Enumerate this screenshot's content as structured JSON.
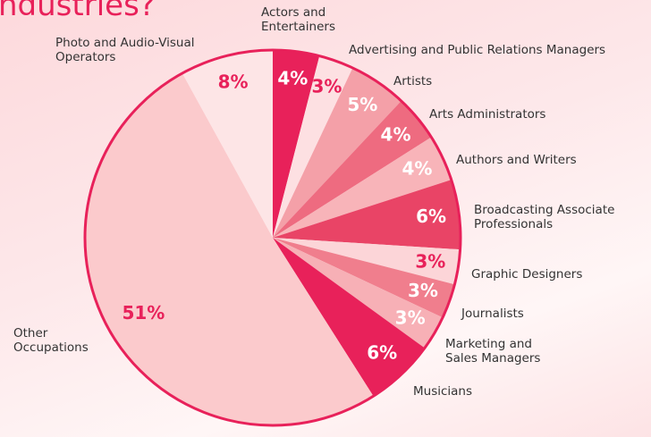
{
  "chart_data": {
    "type": "pie",
    "title": "ndustries?",
    "categories": [
      "Actors and Entertainers",
      "Advertising and Public Relations Managers",
      "Artists",
      "Arts Administrators",
      "Authors and Writers",
      "Broadcasting Associate Professionals",
      "Graphic Designers",
      "Journalists",
      "Marketing and Sales Managers",
      "Musicians",
      "Other Occupations",
      "Photo and Audio-Visual Operators"
    ],
    "values": [
      4,
      3,
      5,
      4,
      4,
      6,
      3,
      3,
      3,
      6,
      51,
      8
    ],
    "value_labels": [
      "4%",
      "3%",
      "5%",
      "4%",
      "4%",
      "6%",
      "3%",
      "3%",
      "3%",
      "6%",
      "51%",
      "8%"
    ],
    "colors": [
      "#e8215a",
      "#fde0e2",
      "#f4a0a8",
      "#ee6b80",
      "#f8b4b9",
      "#e94466",
      "#fcd5d8",
      "#f07e8d",
      "#f7b0b6",
      "#e8215a",
      "#fbcacc",
      "#fde5e6"
    ]
  }
}
